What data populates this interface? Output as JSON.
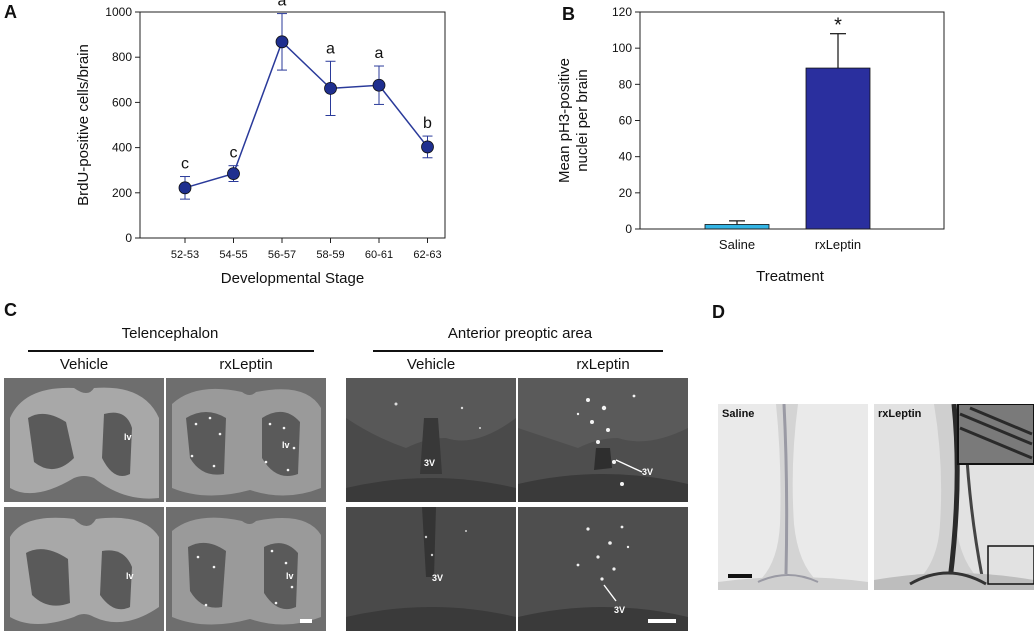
{
  "panels": {
    "a": {
      "letter": "A"
    },
    "b": {
      "letter": "B"
    },
    "c": {
      "letter": "C",
      "telencephalon": "Telencephalon",
      "anterior_preoptic": "Anterior preoptic area",
      "vehicle": "Vehicle",
      "rxleptin": "rxLeptin",
      "lv": "lv",
      "v3": "3V"
    },
    "d": {
      "letter": "D",
      "saline": "Saline",
      "rxleptin": "rxLeptin"
    }
  },
  "chart_data": [
    {
      "type": "line",
      "panel": "A",
      "title": "",
      "xlabel": "Developmental Stage",
      "ylabel": "BrdU-positive cells/brain",
      "categories": [
        "52-53",
        "54-55",
        "56-57",
        "58-59",
        "60-61",
        "62-63"
      ],
      "values": [
        222,
        285,
        868,
        662,
        676,
        403
      ],
      "errors": [
        50,
        35,
        125,
        120,
        85,
        48
      ],
      "significance": [
        "c",
        "c",
        "a",
        "a",
        "a",
        "b"
      ],
      "ylim": [
        0,
        1000
      ],
      "yticks": [
        0,
        200,
        400,
        600,
        800,
        1000
      ],
      "color": "#2a3a9a",
      "marker_color": "#1f2f8f"
    },
    {
      "type": "bar",
      "panel": "B",
      "title": "",
      "xlabel": "Treatment",
      "ylabel": "Mean pH3-positive nuclei per brain",
      "categories": [
        "Saline",
        "rxLeptin"
      ],
      "values": [
        2.5,
        89
      ],
      "errors": [
        2,
        19
      ],
      "annotations": [
        "",
        "*"
      ],
      "ylim": [
        0,
        120
      ],
      "yticks": [
        0,
        20,
        40,
        60,
        80,
        100,
        120
      ],
      "colors": [
        "#33b5e5",
        "#2a2f9e"
      ]
    }
  ]
}
